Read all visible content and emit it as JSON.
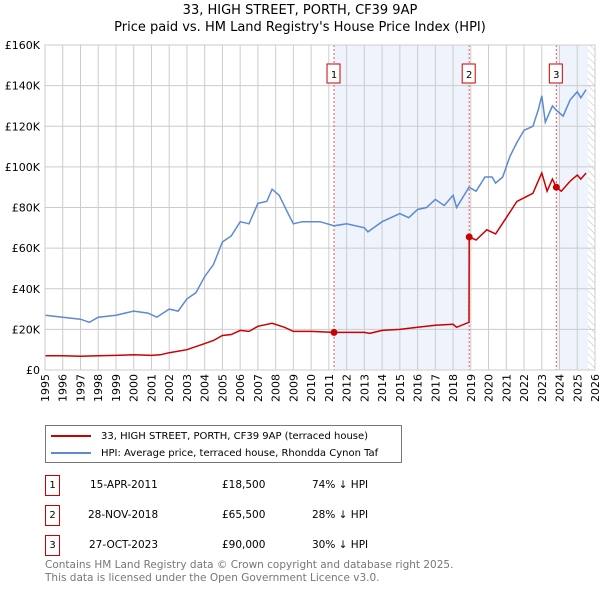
{
  "chart_data": {
    "type": "line",
    "title": "33, HIGH STREET, PORTH, CF39 9AP",
    "subtitle": "Price paid vs. HM Land Registry's House Price Index (HPI)",
    "xlim": [
      1995,
      2026
    ],
    "ylim": [
      0,
      160000
    ],
    "yticks": [
      {
        "v": 0,
        "label": "£0"
      },
      {
        "v": 20000,
        "label": "£20K"
      },
      {
        "v": 40000,
        "label": "£40K"
      },
      {
        "v": 60000,
        "label": "£60K"
      },
      {
        "v": 80000,
        "label": "£80K"
      },
      {
        "v": 100000,
        "label": "£100K"
      },
      {
        "v": 120000,
        "label": "£120K"
      },
      {
        "v": 140000,
        "label": "£140K"
      },
      {
        "v": 160000,
        "label": "£160K"
      }
    ],
    "xticks": [
      "1995",
      "1996",
      "1997",
      "1998",
      "1999",
      "2000",
      "2001",
      "2002",
      "2003",
      "2004",
      "2005",
      "2006",
      "2007",
      "2008",
      "2009",
      "2010",
      "2011",
      "2012",
      "2013",
      "2014",
      "2015",
      "2016",
      "2017",
      "2018",
      "2019",
      "2020",
      "2021",
      "2022",
      "2023",
      "2024",
      "2025",
      "2026"
    ],
    "grid": true,
    "series": [
      {
        "name": "33, HIGH STREET, PORTH, CF39 9AP (terraced house)",
        "color": "#cc0000",
        "x": [
          1995,
          1996,
          1997,
          1998,
          1999,
          2000,
          2001,
          2001.5,
          2002,
          2003,
          2004,
          2004.5,
          2005,
          2005.5,
          2006,
          2006.5,
          2007,
          2007.8,
          2008.5,
          2009,
          2010,
          2011.29,
          2012,
          2013,
          2013.3,
          2014,
          2015,
          2016,
          2017,
          2018,
          2018.2,
          2018.9,
          2018.91,
          2019.3,
          2019.9,
          2020.4,
          2021,
          2021.6,
          2022.5,
          2022.8,
          2023,
          2023.3,
          2023.6,
          2023.82,
          2024.1,
          2024.6,
          2025,
          2025.2,
          2025.5
        ],
        "y": [
          7000,
          7000,
          6800,
          7000,
          7200,
          7500,
          7200,
          7500,
          8500,
          10000,
          13000,
          14500,
          17000,
          17500,
          19500,
          19000,
          21500,
          23000,
          21000,
          19000,
          19000,
          18500,
          18500,
          18500,
          18000,
          19500,
          20000,
          21000,
          22000,
          22500,
          21000,
          23500,
          65500,
          64000,
          69000,
          67000,
          75000,
          83000,
          87000,
          93000,
          97000,
          88000,
          94000,
          90000,
          88000,
          93000,
          96000,
          94000,
          97000
        ]
      },
      {
        "name": "HPI: Average price, terraced house, Rhondda Cynon Taf",
        "color": "#5b8bd0",
        "x": [
          1995,
          1996,
          1997,
          1997.5,
          1998,
          1999,
          2000,
          2000.8,
          2001.3,
          2002,
          2002.5,
          2003,
          2003.5,
          2004,
          2004.5,
          2005,
          2005.5,
          2006,
          2006.5,
          2007,
          2007.5,
          2007.8,
          2008.2,
          2008.7,
          2009,
          2009.5,
          2010,
          2010.5,
          2011.3,
          2012,
          2013,
          2013.2,
          2014,
          2015,
          2015.5,
          2016,
          2016.5,
          2017,
          2017.5,
          2018,
          2018.2,
          2018.9,
          2019.3,
          2019.8,
          2020.2,
          2020.4,
          2020.8,
          2021.2,
          2021.6,
          2022,
          2022.5,
          2022.8,
          2023,
          2023.2,
          2023.6,
          2023.8,
          2024.2,
          2024.6,
          2025,
          2025.2,
          2025.5
        ],
        "y": [
          27000,
          26000,
          25000,
          23500,
          26000,
          27000,
          29000,
          28000,
          26000,
          30000,
          29000,
          35000,
          38000,
          46000,
          52000,
          63000,
          66000,
          73000,
          72000,
          82000,
          83000,
          89000,
          86000,
          77000,
          72000,
          73000,
          73000,
          73000,
          71000,
          72000,
          70000,
          68000,
          73000,
          77000,
          75000,
          79000,
          80000,
          84000,
          81000,
          86000,
          80000,
          90000,
          88000,
          95000,
          95000,
          92000,
          95000,
          105000,
          112000,
          118000,
          120000,
          128000,
          135000,
          122000,
          130000,
          128000,
          125000,
          133000,
          137000,
          134000,
          138000
        ]
      }
    ],
    "sales": [
      {
        "n": "1",
        "x": 2011.29,
        "y": 18500,
        "date": "15-APR-2011",
        "price": "£18,500",
        "hpi": "74% ↓ HPI"
      },
      {
        "n": "2",
        "x": 2018.91,
        "y": 65500,
        "date": "28-NOV-2018",
        "price": "£65,500",
        "hpi": "28% ↓ HPI"
      },
      {
        "n": "3",
        "x": 2023.82,
        "y": 90000,
        "date": "27-OCT-2023",
        "price": "£90,000",
        "hpi": "30% ↓ HPI"
      }
    ],
    "shaded": [
      [
        2011.29,
        2018.91
      ],
      [
        2023.82,
        2025.6
      ]
    ],
    "hatched_from": 2025.6,
    "legend_position": "bottom"
  },
  "footer": {
    "line1": "Contains HM Land Registry data © Crown copyright and database right 2025.",
    "line2": "This data is licensed under the Open Government Licence v3.0."
  }
}
